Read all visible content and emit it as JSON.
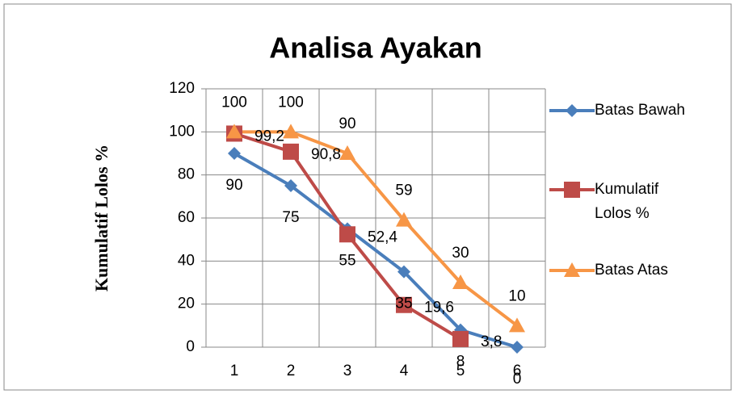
{
  "chart_data": {
    "type": "line",
    "title": "Analisa Ayakan",
    "y_label": "Kumulatif Lolos %",
    "categories": [
      "1",
      "2",
      "3",
      "4",
      "5",
      "6"
    ],
    "series": [
      {
        "name": "Batas Bawah",
        "color": "#4a7ebb",
        "marker": "diamond",
        "values": [
          90,
          75,
          55,
          35,
          8,
          0
        ]
      },
      {
        "name": "Kumulatif Lolos %",
        "color": "#be4b48",
        "marker": "square",
        "values": [
          99.2,
          90.8,
          52.4,
          19.6,
          3.8,
          null
        ],
        "value_labels": [
          "99,2",
          "90,8",
          "52,4",
          "19,6",
          "3,8",
          null
        ]
      },
      {
        "name": "Batas Atas",
        "color": "#f79646",
        "marker": "triangle",
        "values": [
          100,
          100,
          90,
          59,
          30,
          10
        ]
      }
    ],
    "ylim": [
      0,
      120
    ],
    "yticks": [
      0,
      20,
      40,
      60,
      80,
      100,
      120
    ],
    "grid": true,
    "legend": "right"
  }
}
